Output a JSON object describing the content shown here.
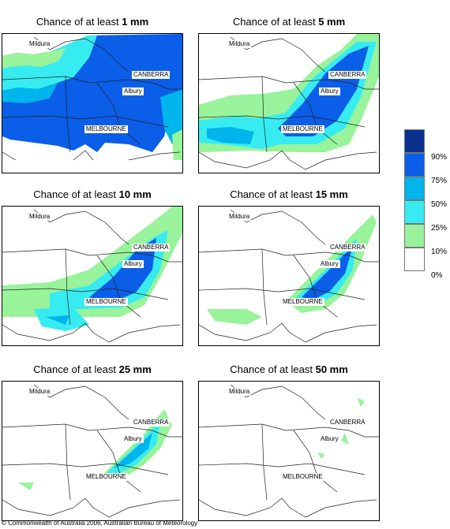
{
  "panels": [
    {
      "title_prefix": "Chance of at least ",
      "title_amount": "1 mm"
    },
    {
      "title_prefix": "Chance of at least ",
      "title_amount": "5 mm"
    },
    {
      "title_prefix": "Chance of at least ",
      "title_amount": "10 mm"
    },
    {
      "title_prefix": "Chance of at least ",
      "title_amount": "15 mm"
    },
    {
      "title_prefix": "Chance of at least ",
      "title_amount": "25 mm"
    },
    {
      "title_prefix": "Chance of at least ",
      "title_amount": "50 mm"
    }
  ],
  "cities": {
    "mildura": "Mildura",
    "canberra": "CANBERRA",
    "albury": "Albury",
    "melbourne": "MELBOURNE"
  },
  "legend": {
    "labels": [
      "90%",
      "75%",
      "50%",
      "25%",
      "10%",
      "0%"
    ],
    "colors": [
      "#08308c",
      "#0a5ee8",
      "#00b4ec",
      "#36ecf0",
      "#98f39a",
      "#ffffff"
    ]
  },
  "footer": "© Commonwealth of Australia 2006, Australian Bureau of Meteorology"
}
